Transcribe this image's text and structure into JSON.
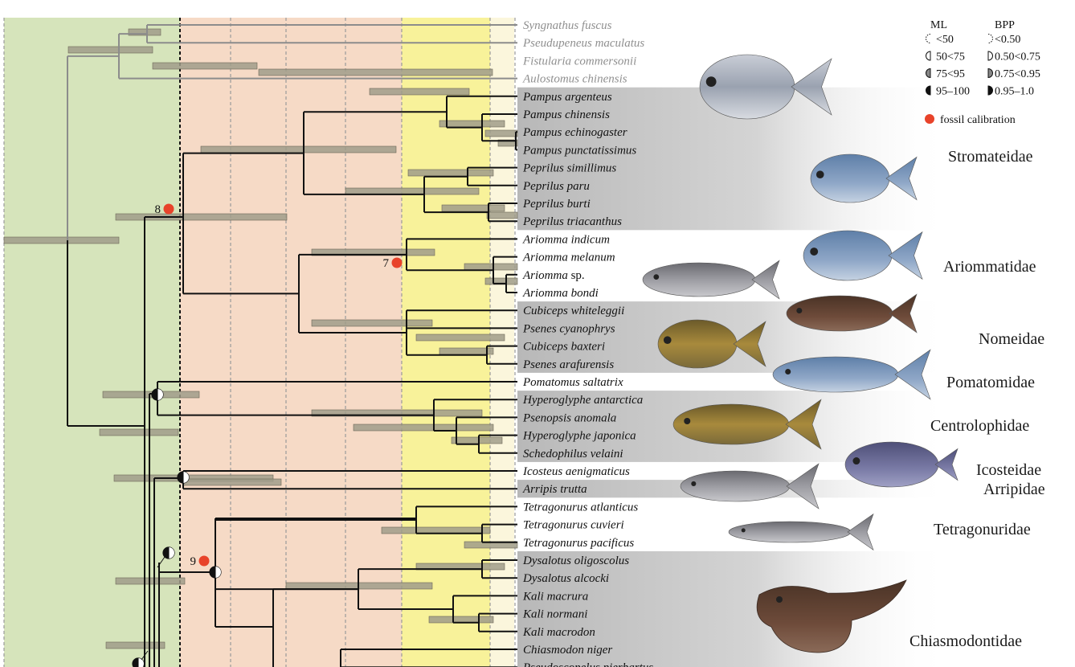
{
  "colors": {
    "zone_green": "#d6e4bb",
    "zone_peach": "#f6dac6",
    "zone_pink": "#f5ddd6",
    "zone_yellow": "#f8f29a",
    "zone_cream": "#fbf6dc",
    "band_gray": "#bdbdbd",
    "fossil": "#e8432a",
    "bar_fill": "#a09c8a",
    "outgroup_line": "#8c8c8c"
  },
  "taxa": [
    {
      "genus": "Syngnathus",
      "epithet": "fuscus",
      "outgroup": true
    },
    {
      "genus": "Pseudupeneus",
      "epithet": "maculatus",
      "outgroup": true
    },
    {
      "genus": "Fistularia",
      "epithet": "commersonii",
      "outgroup": true
    },
    {
      "genus": "Aulostomus",
      "epithet": "chinensis",
      "outgroup": true
    },
    {
      "genus": "Pampus",
      "epithet": "argenteus"
    },
    {
      "genus": "Pampus",
      "epithet": "chinensis"
    },
    {
      "genus": "Pampus",
      "epithet": "echinogaster"
    },
    {
      "genus": "Pampus",
      "epithet": "punctatissimus"
    },
    {
      "genus": "Peprilus",
      "epithet": "simillimus"
    },
    {
      "genus": "Peprilus",
      "epithet": "paru"
    },
    {
      "genus": "Peprilus",
      "epithet": "burti"
    },
    {
      "genus": "Peprilus",
      "epithet": "triacanthus"
    },
    {
      "genus": "Ariomma",
      "epithet": "indicum"
    },
    {
      "genus": "Ariomma",
      "epithet": "melanum"
    },
    {
      "genus": "Ariomma",
      "epithet": "sp.",
      "epithet_roman": true
    },
    {
      "genus": "Ariomma",
      "epithet": "bondi"
    },
    {
      "genus": "Cubiceps",
      "epithet": "whiteleggii"
    },
    {
      "genus": "Psenes",
      "epithet": "cyanophrys"
    },
    {
      "genus": "Cubiceps",
      "epithet": "baxteri"
    },
    {
      "genus": "Psenes",
      "epithet": "arafurensis"
    },
    {
      "genus": "Pomatomus",
      "epithet": "saltatrix"
    },
    {
      "genus": "Hyperoglyphe",
      "epithet": "antarctica"
    },
    {
      "genus": "Psenopsis",
      "epithet": "anomala"
    },
    {
      "genus": "Hyperoglyphe",
      "epithet": "japonica"
    },
    {
      "genus": "Schedophilus",
      "epithet": "velaini"
    },
    {
      "genus": "Icosteus",
      "epithet": "aenigmaticus"
    },
    {
      "genus": "Arripis",
      "epithet": "trutta"
    },
    {
      "genus": "Tetragonurus",
      "epithet": "atlanticus"
    },
    {
      "genus": "Tetragonurus",
      "epithet": "cuvieri"
    },
    {
      "genus": "Tetragonurus",
      "epithet": "pacificus"
    },
    {
      "genus": "Dysalotus",
      "epithet": "oligoscolus"
    },
    {
      "genus": "Dysalotus",
      "epithet": "alcocki"
    },
    {
      "genus": "Kali",
      "epithet": "macrura"
    },
    {
      "genus": "Kali",
      "epithet": "normani"
    },
    {
      "genus": "Kali",
      "epithet": "macrodon"
    },
    {
      "genus": "Chiasmodon",
      "epithet": "niger"
    },
    {
      "genus": "Pseudoscopelus",
      "epithet": "pierbartus"
    }
  ],
  "families": [
    {
      "name": "Stromateidae",
      "from": 4,
      "to": 11,
      "shaded": true
    },
    {
      "name": "Ariommatidae",
      "from": 12,
      "to": 15,
      "shaded": false
    },
    {
      "name": "Nomeidae",
      "from": 16,
      "to": 19,
      "shaded": true
    },
    {
      "name": "Pomatomidae",
      "from": 20,
      "to": 20,
      "shaded": false
    },
    {
      "name": "Centrolophidae",
      "from": 21,
      "to": 24,
      "shaded": true
    },
    {
      "name": "Icosteidae",
      "from": 25,
      "to": 25,
      "shaded": false
    },
    {
      "name": "Arripidae",
      "from": 26,
      "to": 26,
      "shaded": true
    },
    {
      "name": "Tetragonuridae",
      "from": 27,
      "to": 29,
      "shaded": false
    },
    {
      "name": "Chiasmodontidae",
      "from": 30,
      "to": 36,
      "shaded": true
    }
  ],
  "fossil_calibrations": [
    "7",
    "8",
    "9"
  ],
  "legend": {
    "ml_header": "ML",
    "bpp_header": "BPP",
    "rows": [
      {
        "ml": "<50",
        "bpp": "<0.50",
        "level": 0
      },
      {
        "ml": "50<75",
        "bpp": "0.50<0.75",
        "level": 1
      },
      {
        "ml": "75<95",
        "bpp": "0.75<0.95",
        "level": 2
      },
      {
        "ml": "95–100",
        "bpp": "0.95–1.0",
        "level": 3
      }
    ],
    "fossil_label": "fossil calibration"
  }
}
